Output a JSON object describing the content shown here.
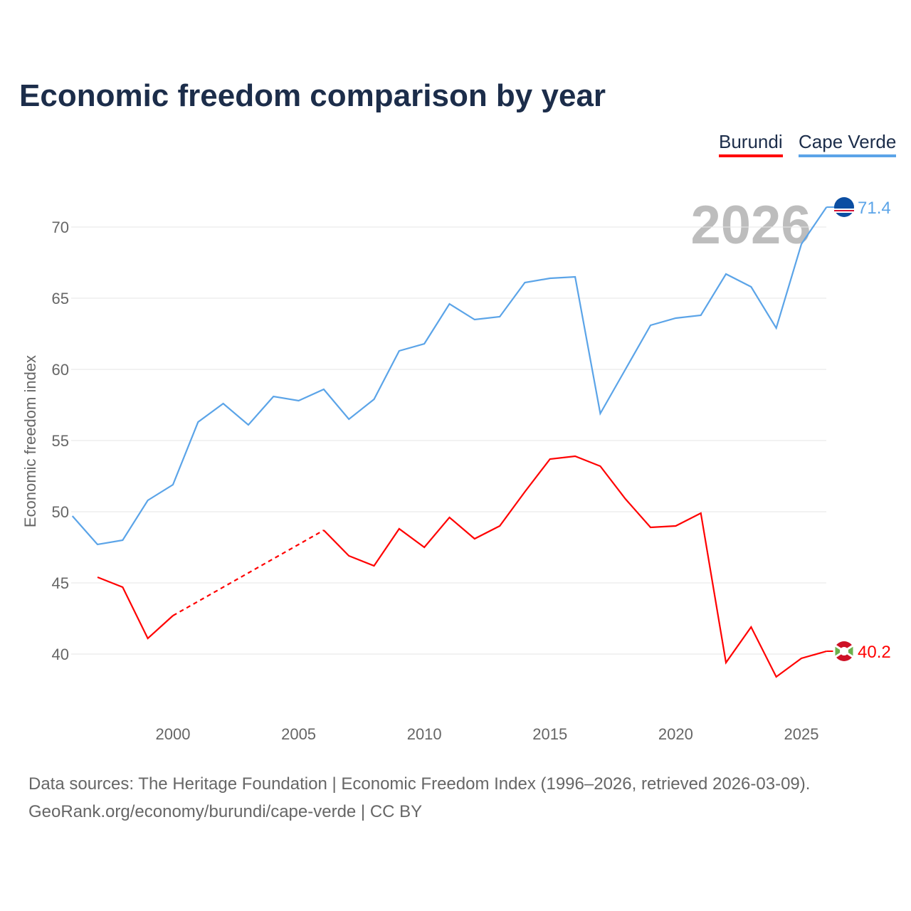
{
  "title": "Economic freedom comparison by year",
  "chart_data": {
    "type": "line",
    "title": "Economic freedom comparison by year",
    "xlabel": "",
    "ylabel": "Economic freedom index",
    "xlim": [
      1996,
      2026
    ],
    "ylim": [
      35,
      73
    ],
    "grid": true,
    "legend_placement": "top-right",
    "x_ticks": [
      "2000",
      "2005",
      "2010",
      "2015",
      "2020",
      "2025"
    ],
    "y_ticks": [
      "40",
      "45",
      "50",
      "55",
      "60",
      "65",
      "70"
    ],
    "year_annotation": "2026",
    "x": [
      1996,
      1997,
      1998,
      1999,
      2000,
      2001,
      2002,
      2003,
      2004,
      2005,
      2006,
      2007,
      2008,
      2009,
      2010,
      2011,
      2012,
      2013,
      2014,
      2015,
      2016,
      2017,
      2018,
      2019,
      2020,
      2021,
      2022,
      2023,
      2024,
      2025,
      2026
    ],
    "series": [
      {
        "name": "Burundi",
        "color": "#ff0000",
        "end_label": "40.2",
        "values": [
          null,
          45.4,
          44.7,
          41.1,
          42.7,
          null,
          null,
          null,
          null,
          null,
          48.7,
          46.9,
          46.2,
          48.8,
          47.5,
          49.6,
          48.1,
          49.0,
          51.4,
          53.7,
          53.9,
          53.2,
          50.9,
          48.9,
          49.0,
          49.9,
          39.4,
          41.9,
          38.4,
          39.7,
          40.2
        ]
      },
      {
        "name": "Cape Verde",
        "color": "#5ba4e8",
        "end_label": "71.4",
        "values": [
          49.7,
          47.7,
          48.0,
          50.8,
          51.9,
          56.3,
          57.6,
          56.1,
          58.1,
          57.8,
          58.6,
          56.5,
          57.9,
          61.3,
          61.8,
          64.6,
          63.5,
          63.7,
          66.1,
          66.4,
          66.5,
          56.9,
          60.0,
          63.1,
          63.6,
          63.8,
          66.7,
          65.8,
          62.9,
          68.8,
          71.4
        ]
      }
    ]
  },
  "footer": {
    "line1": "Data sources: The Heritage Foundation | Economic Freedom Index (1996–2026, retrieved 2026-03-09).",
    "line2": "GeoRank.org/economy/burundi/cape-verde | CC BY"
  }
}
